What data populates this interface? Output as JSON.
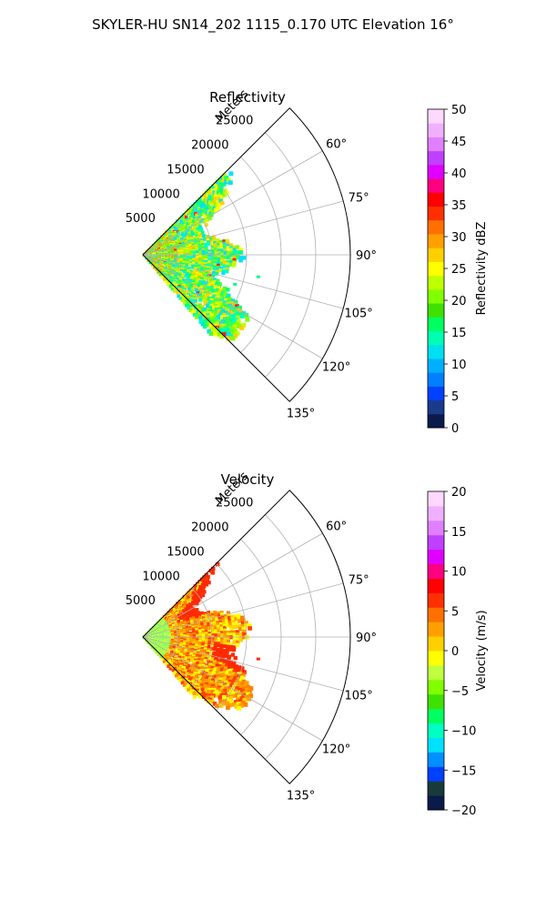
{
  "figure": {
    "suptitle": "SKYLER-HU  SN14_202  1115_0.170 UTC Elevation 16°"
  },
  "chart_data": [
    {
      "type": "heatmap",
      "projection": "polar-sector",
      "title": "Reflectivity",
      "radial_label": "Meters",
      "r_ticks": [
        5000,
        10000,
        15000,
        20000,
        25000
      ],
      "r_tick_labels": [
        "5000",
        "10000",
        "15000",
        "20000",
        "25000"
      ],
      "rlim": [
        0,
        30000
      ],
      "theta_ticks": [
        60,
        75,
        90,
        105,
        120,
        135
      ],
      "theta_tick_labels": [
        "60°",
        "75°",
        "90°",
        "105°",
        "120°",
        "135°"
      ],
      "theta_range_deg": [
        45,
        135
      ],
      "grid": true,
      "colorbar": {
        "label": "Reflectivity dBZ",
        "vmin": 0,
        "vmax": 50,
        "ticks": [
          0,
          5,
          10,
          15,
          20,
          25,
          30,
          35,
          40,
          45,
          50
        ],
        "tick_labels": [
          "0",
          "5",
          "10",
          "15",
          "20",
          "25",
          "30",
          "35",
          "40",
          "45",
          "50"
        ],
        "colors": [
          "#0a1a4a",
          "#1a3a8a",
          "#0040ff",
          "#0080ff",
          "#00b0ff",
          "#00e0f0",
          "#00ffb0",
          "#00ff60",
          "#40e000",
          "#80ff00",
          "#c0ff00",
          "#ffff00",
          "#ffd000",
          "#ffa000",
          "#ff7000",
          "#ff3000",
          "#ff0000",
          "#ff0080",
          "#e000ff",
          "#c040ff",
          "#e080ff",
          "#f0b0ff",
          "#ffd8ff"
        ]
      },
      "echo_extent_m": 18000,
      "palette": [
        "#00ff80",
        "#40ff40",
        "#80ff00",
        "#c0ff00",
        "#ffff00",
        "#ffd000",
        "#00e0ff",
        "#00ffc0"
      ]
    },
    {
      "type": "heatmap",
      "projection": "polar-sector",
      "title": "Velocity",
      "radial_label": "Meters",
      "r_ticks": [
        5000,
        10000,
        15000,
        20000,
        25000
      ],
      "r_tick_labels": [
        "5000",
        "10000",
        "15000",
        "20000",
        "25000"
      ],
      "rlim": [
        0,
        30000
      ],
      "theta_ticks": [
        60,
        75,
        90,
        105,
        120,
        135
      ],
      "theta_tick_labels": [
        "60°",
        "75°",
        "90°",
        "105°",
        "120°",
        "135°"
      ],
      "theta_range_deg": [
        45,
        135
      ],
      "grid": true,
      "colorbar": {
        "label": "Velocity (m/s)",
        "vmin": -20,
        "vmax": 20,
        "ticks": [
          -20,
          -15,
          -10,
          -5,
          0,
          5,
          10,
          15,
          20
        ],
        "tick_labels": [
          "−20",
          "−15",
          "−10",
          "−5",
          "0",
          "5",
          "10",
          "15",
          "20"
        ],
        "colors": [
          "#0a1a4a",
          "#1a3a3a",
          "#0040ff",
          "#0090ff",
          "#00e0ff",
          "#00ffc0",
          "#00ff60",
          "#40e000",
          "#80ff00",
          "#c0ff40",
          "#ffff00",
          "#ffd000",
          "#ffa000",
          "#ff7000",
          "#ff3000",
          "#ff0000",
          "#ff0080",
          "#e000ff",
          "#c040ff",
          "#e080ff",
          "#f0b0ff",
          "#ffd8ff"
        ]
      },
      "echo_extent_m": 18000,
      "palette": [
        "#ffff00",
        "#ffd000",
        "#ffa000",
        "#ff8000",
        "#ff4000",
        "#c0ff40",
        "#80ff00",
        "#ffe040"
      ]
    }
  ]
}
